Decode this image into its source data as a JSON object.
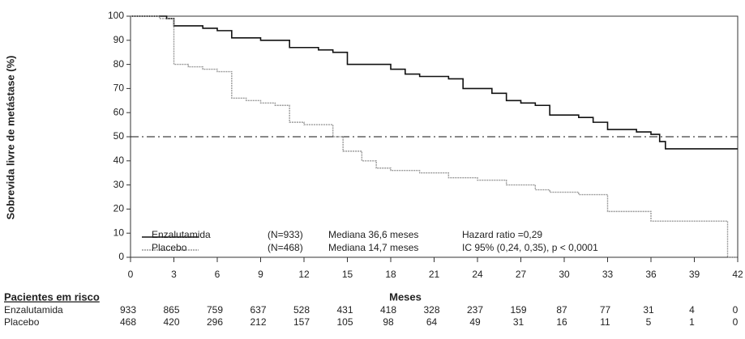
{
  "chart_data": {
    "type": "line",
    "step": true,
    "y_label": "Sobrevida livre de metástase (%)",
    "x_label": "Meses",
    "xlim": [
      0,
      42
    ],
    "xticks": [
      0,
      3,
      6,
      9,
      12,
      15,
      18,
      21,
      24,
      27,
      30,
      33,
      36,
      39,
      42
    ],
    "ylim": [
      0,
      100
    ],
    "yticks": [
      0,
      10,
      20,
      30,
      40,
      50,
      60,
      70,
      80,
      90,
      100
    ],
    "reference_line": 50,
    "annotations": [
      "Hazard ratio =0,29",
      "IC 95% (0,24, 0,35), p < 0,0001"
    ],
    "risk_table_title": "Pacientes em risco",
    "series": [
      {
        "name": "Enzalutamida",
        "color": "#111111",
        "n_label": "(N=933)",
        "median_label": "Mediana 36,6 meses",
        "x": [
          0,
          1.5,
          2.5,
          3,
          5,
          6,
          7,
          8,
          9,
          11,
          13,
          14,
          15,
          17,
          18,
          19,
          20,
          22,
          23,
          25,
          26,
          27,
          28,
          29,
          31,
          32,
          33,
          35,
          36,
          36.6,
          37,
          42
        ],
        "values": [
          100,
          100,
          99,
          96,
          95,
          94,
          91,
          91,
          90,
          87,
          86,
          85,
          80,
          80,
          78,
          76,
          75,
          74,
          70,
          68,
          65,
          64,
          63,
          59,
          58,
          56,
          53,
          52,
          51,
          48,
          45,
          45
        ],
        "at_risk": [
          933,
          865,
          759,
          637,
          528,
          431,
          418,
          328,
          237,
          159,
          87,
          77,
          31,
          4,
          0
        ]
      },
      {
        "name": "Placebo",
        "color": "#999999",
        "n_label": "(N=468)",
        "median_label": "Mediana 14,7 meses",
        "x": [
          0,
          2,
          3,
          4,
          5,
          6,
          7,
          8,
          9,
          10,
          11,
          12,
          14,
          14.7,
          16,
          17,
          18,
          20,
          22,
          24,
          26,
          28,
          29,
          31,
          33,
          36,
          41,
          41.3,
          42
        ],
        "values": [
          100,
          99,
          80,
          79,
          78,
          77,
          66,
          65,
          64,
          63,
          56,
          55,
          50,
          44,
          40,
          37,
          36,
          35,
          33,
          32,
          30,
          28,
          27,
          26,
          19,
          15,
          15,
          0,
          0
        ],
        "at_risk": [
          468,
          420,
          296,
          212,
          157,
          105,
          98,
          64,
          49,
          31,
          16,
          11,
          5,
          1,
          0
        ]
      }
    ]
  }
}
